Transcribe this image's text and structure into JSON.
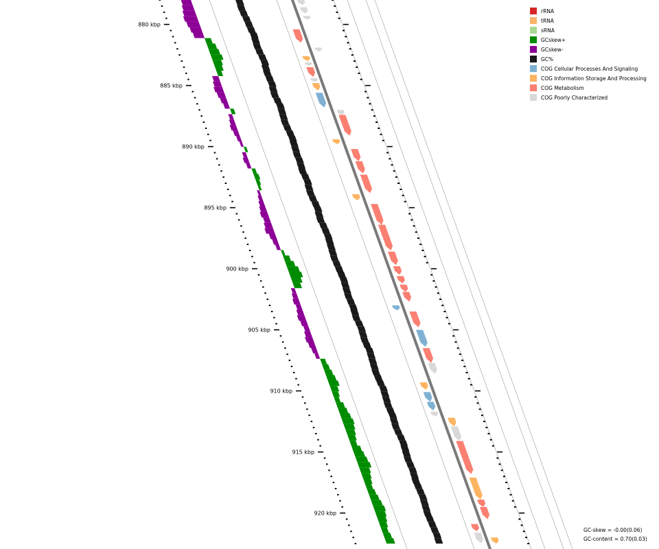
{
  "ruler": {
    "start_kbp": 878,
    "end_kbp": 922.5,
    "tick_labels": [
      "880 kbp",
      "885 kbp",
      "890 kbp",
      "895 kbp",
      "900 kbp",
      "905 kbp",
      "910 kbp",
      "915 kbp",
      "920 kbp"
    ]
  },
  "legend": [
    {
      "label": "rRNA",
      "color": "#d62728"
    },
    {
      "label": "tRNA",
      "color": "#fbb36b"
    },
    {
      "label": "sRNA",
      "color": "#a6d894"
    },
    {
      "label": "GCskew+",
      "color": "#008c00"
    },
    {
      "label": "GCskew-",
      "color": "#8c0096"
    },
    {
      "label": "GC%",
      "color": "#1a1a1a"
    },
    {
      "label": "COG Cellular Processes And Signaling",
      "color": "#80b1d3"
    },
    {
      "label": "COG Information Storage And Processing",
      "color": "#fdb462"
    },
    {
      "label": "COG Metabolism",
      "color": "#fb8072"
    },
    {
      "label": "COG Poorly Characterized",
      "color": "#d9d9d9"
    }
  ],
  "stats": {
    "gc_skew": "GC-skew = -0.00(0.06)",
    "gc_content": "GC-content = 0.70(0.03)"
  },
  "features": [
    {
      "start": 878.0,
      "end": 878.4,
      "strand": "+",
      "cog": "poor"
    },
    {
      "start": 878.6,
      "end": 879.1,
      "strand": "+",
      "cog": "poor"
    },
    {
      "start": 879.3,
      "end": 879.6,
      "strand": "+",
      "cog": "poor"
    },
    {
      "start": 880.4,
      "end": 881.5,
      "strand": "-",
      "cog": "metabolism"
    },
    {
      "start": 881.9,
      "end": 882.2,
      "strand": "+",
      "cog": "poor"
    },
    {
      "start": 882.6,
      "end": 883.0,
      "strand": "-",
      "cog": "info"
    },
    {
      "start": 883.1,
      "end": 883.4,
      "strand": "-",
      "cog": "poor"
    },
    {
      "start": 883.5,
      "end": 884.3,
      "strand": "-",
      "cog": "metabolism"
    },
    {
      "start": 884.4,
      "end": 884.7,
      "strand": "-",
      "cog": "poor"
    },
    {
      "start": 884.8,
      "end": 885.4,
      "strand": "-",
      "cog": "info"
    },
    {
      "start": 885.6,
      "end": 886.8,
      "strand": "-",
      "cog": "cellular"
    },
    {
      "start": 887.0,
      "end": 887.4,
      "strand": "+",
      "cog": "poor"
    },
    {
      "start": 887.4,
      "end": 889.1,
      "strand": "+",
      "cog": "metabolism"
    },
    {
      "start": 889.4,
      "end": 889.8,
      "strand": "-",
      "cog": "info"
    },
    {
      "start": 890.2,
      "end": 891.2,
      "strand": "+",
      "cog": "metabolism"
    },
    {
      "start": 891.2,
      "end": 892.2,
      "strand": "+",
      "cog": "metabolism"
    },
    {
      "start": 892.3,
      "end": 893.8,
      "strand": "+",
      "cog": "metabolism"
    },
    {
      "start": 893.9,
      "end": 894.4,
      "strand": "-",
      "cog": "info"
    },
    {
      "start": 894.7,
      "end": 896.4,
      "strand": "+",
      "cog": "metabolism"
    },
    {
      "start": 896.4,
      "end": 898.5,
      "strand": "+",
      "cog": "metabolism"
    },
    {
      "start": 898.6,
      "end": 899.7,
      "strand": "+",
      "cog": "metabolism"
    },
    {
      "start": 899.8,
      "end": 900.5,
      "strand": "+",
      "cog": "metabolism"
    },
    {
      "start": 900.6,
      "end": 901.2,
      "strand": "+",
      "cog": "metabolism"
    },
    {
      "start": 901.3,
      "end": 901.9,
      "strand": "+",
      "cog": "metabolism"
    },
    {
      "start": 901.9,
      "end": 902.7,
      "strand": "+",
      "cog": "metabolism"
    },
    {
      "start": 903.0,
      "end": 903.4,
      "strand": "-",
      "cog": "cellular"
    },
    {
      "start": 903.5,
      "end": 904.8,
      "strand": "+",
      "cog": "metabolism"
    },
    {
      "start": 905.0,
      "end": 906.4,
      "strand": "+",
      "cog": "cellular"
    },
    {
      "start": 906.5,
      "end": 907.7,
      "strand": "+",
      "cog": "metabolism"
    },
    {
      "start": 907.7,
      "end": 908.6,
      "strand": "+",
      "cog": "poor"
    },
    {
      "start": 909.3,
      "end": 909.9,
      "strand": "-",
      "cog": "info"
    },
    {
      "start": 910.1,
      "end": 910.9,
      "strand": "-",
      "cog": "cellular"
    },
    {
      "start": 910.9,
      "end": 911.6,
      "strand": "-",
      "cog": "cellular"
    },
    {
      "start": 911.7,
      "end": 912.1,
      "strand": "-",
      "cog": "poor"
    },
    {
      "start": 912.2,
      "end": 912.9,
      "strand": "+",
      "cog": "info"
    },
    {
      "start": 912.9,
      "end": 914.1,
      "strand": "+",
      "cog": "poor"
    },
    {
      "start": 914.1,
      "end": 916.8,
      "strand": "+",
      "cog": "metabolism"
    },
    {
      "start": 917.1,
      "end": 918.9,
      "strand": "+",
      "cog": "info"
    },
    {
      "start": 918.9,
      "end": 919.5,
      "strand": "+",
      "cog": "metabolism"
    },
    {
      "start": 919.5,
      "end": 920.5,
      "strand": "+",
      "cog": "metabolism"
    },
    {
      "start": 920.9,
      "end": 921.5,
      "strand": "-",
      "cog": "metabolism"
    },
    {
      "start": 921.6,
      "end": 922.5,
      "strand": "-",
      "cog": "poor"
    },
    {
      "start": 922.0,
      "end": 922.5,
      "strand": "+",
      "cog": "info"
    }
  ],
  "gc_profile": [
    0.64,
    0.63,
    0.64,
    0.66,
    0.67,
    0.68,
    0.7,
    0.69,
    0.68,
    0.69,
    0.71,
    0.72,
    0.7,
    0.69,
    0.7,
    0.71,
    0.69,
    0.68,
    0.7,
    0.72,
    0.71,
    0.7,
    0.69,
    0.7,
    0.72,
    0.73,
    0.72,
    0.71,
    0.7,
    0.71,
    0.7,
    0.69,
    0.71,
    0.72,
    0.7,
    0.69,
    0.7,
    0.72,
    0.73,
    0.71,
    0.7,
    0.72,
    0.73,
    0.74,
    0.73,
    0.72,
    0.71,
    0.7,
    0.71,
    0.72,
    0.73,
    0.74,
    0.73,
    0.72,
    0.71,
    0.72,
    0.73,
    0.72,
    0.71,
    0.73,
    0.74,
    0.73,
    0.72,
    0.73,
    0.75,
    0.74,
    0.73,
    0.72,
    0.71,
    0.72,
    0.73,
    0.75,
    0.74,
    0.73,
    0.72,
    0.73,
    0.74,
    0.73,
    0.72,
    0.73,
    0.75,
    0.76,
    0.75,
    0.74,
    0.73,
    0.74,
    0.75,
    0.74,
    0.73,
    0.74,
    0.75,
    0.76,
    0.75,
    0.74,
    0.73,
    0.74,
    0.75,
    0.76,
    0.77,
    0.76
  ],
  "gc_skew_profile": [
    -0.08,
    -0.09,
    -0.1,
    -0.11,
    -0.1,
    -0.09,
    -0.08,
    0.05,
    0.07,
    0.08,
    0.09,
    0.07,
    0.06,
    0.04,
    -0.05,
    -0.06,
    -0.07,
    -0.06,
    -0.05,
    -0.04,
    0.03,
    -0.03,
    -0.04,
    -0.05,
    -0.04,
    -0.03,
    -0.02,
    0.02,
    -0.03,
    -0.04,
    -0.03,
    0.03,
    0.04,
    0.03,
    0.02,
    -0.02,
    -0.03,
    -0.04,
    -0.05,
    -0.06,
    -0.05,
    -0.06,
    -0.07,
    -0.05,
    -0.04,
    -0.03,
    0.02,
    0.05,
    0.07,
    0.09,
    0.1,
    0.08,
    0.06,
    -0.03,
    -0.04,
    -0.05,
    -0.04,
    -0.05,
    -0.06,
    -0.05,
    -0.04,
    -0.05,
    -0.06,
    -0.05,
    -0.04,
    -0.03,
    0.04,
    0.05,
    0.06,
    0.07,
    0.08,
    0.06,
    0.05,
    0.04,
    0.06,
    0.07,
    0.08,
    0.09,
    0.08,
    0.07,
    0.06,
    0.05,
    0.07,
    0.08,
    0.09,
    0.1,
    0.08,
    0.07,
    0.06,
    0.05,
    0.06,
    0.07,
    0.08,
    0.09,
    0.08,
    0.07,
    0.06,
    0.05,
    0.06,
    0.07
  ]
}
